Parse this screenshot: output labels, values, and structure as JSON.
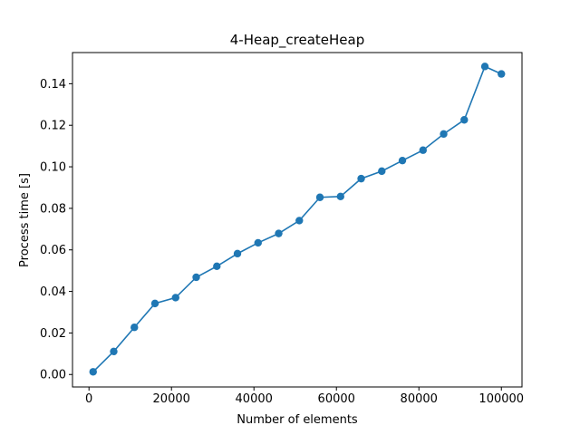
{
  "chart_data": {
    "type": "line",
    "title": "4-Heap_createHeap",
    "xlabel": "Number of elements",
    "ylabel": "Process time [s]",
    "xlim": [
      -4000,
      105000
    ],
    "ylim": [
      -0.006,
      0.155
    ],
    "x_ticks": [
      0,
      20000,
      40000,
      60000,
      80000,
      100000
    ],
    "x_tick_labels": [
      "0",
      "20000",
      "40000",
      "60000",
      "80000",
      "100000"
    ],
    "y_ticks": [
      0.0,
      0.02,
      0.04,
      0.06,
      0.08,
      0.1,
      0.12,
      0.14
    ],
    "y_tick_labels": [
      "0.00",
      "0.02",
      "0.04",
      "0.06",
      "0.08",
      "0.10",
      "0.12",
      "0.14"
    ],
    "grid": false,
    "legend": "none",
    "series": [
      {
        "color": "#1f77b4",
        "marker": "circle",
        "x": [
          1000,
          6000,
          11000,
          16000,
          21000,
          26000,
          31000,
          36000,
          41000,
          46000,
          51000,
          56000,
          61000,
          66000,
          71000,
          76000,
          81000,
          86000,
          91000,
          96000,
          100000
        ],
        "y": [
          0.0013,
          0.0111,
          0.0227,
          0.0342,
          0.037,
          0.0468,
          0.0521,
          0.0582,
          0.0634,
          0.0679,
          0.0741,
          0.0853,
          0.0857,
          0.0943,
          0.0979,
          0.103,
          0.108,
          0.1158,
          0.1226,
          0.1483,
          0.1447
        ]
      }
    ]
  }
}
